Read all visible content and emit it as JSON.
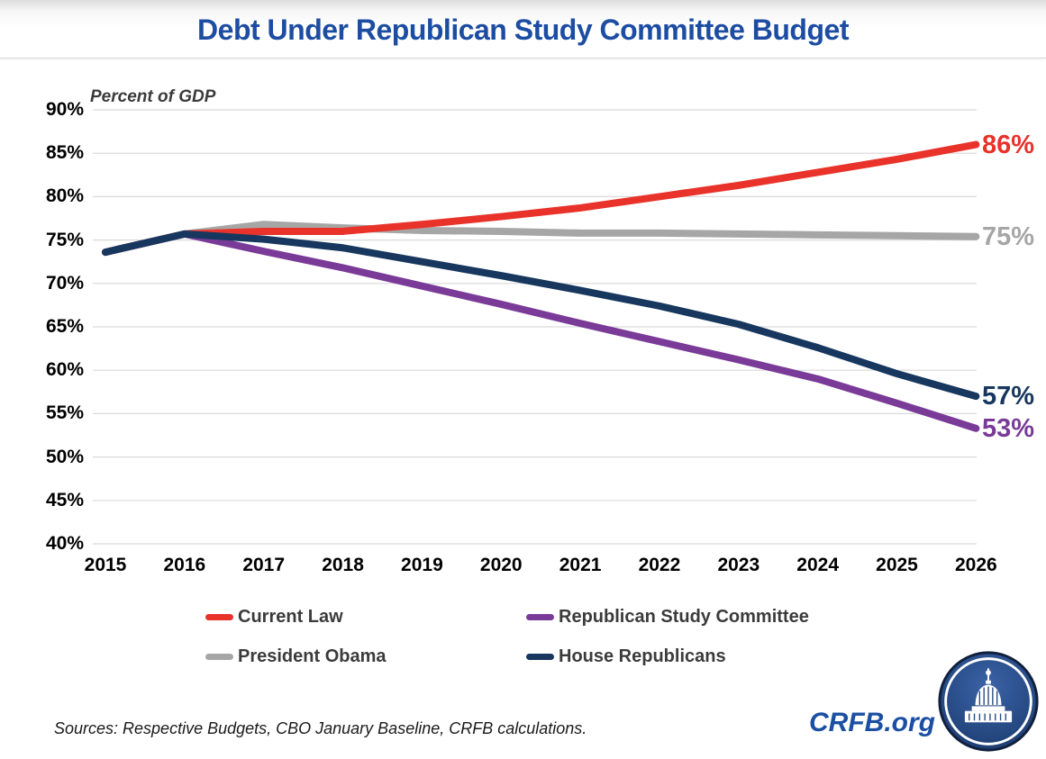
{
  "header": {
    "title": "Debt Under Republican Study Committee Budget"
  },
  "chart_data": {
    "type": "line",
    "title": "Debt Under Republican Study Committee Budget",
    "ylabel": "Percent of GDP",
    "xlabel": "",
    "x": [
      2015,
      2016,
      2017,
      2018,
      2019,
      2020,
      2021,
      2022,
      2023,
      2024,
      2025,
      2026
    ],
    "ylim": [
      40,
      90
    ],
    "ytick_step": 5,
    "ytick_suffix": "%",
    "grid": true,
    "legend_position": "bottom",
    "series": [
      {
        "name": "Current Law",
        "color": "#e8322a",
        "end_label": "86%",
        "values": [
          73.6,
          75.7,
          76.0,
          76.0,
          76.8,
          77.7,
          78.7,
          80.0,
          81.3,
          82.8,
          84.3,
          86.0
        ]
      },
      {
        "name": "President Obama",
        "color": "#a6a6a6",
        "end_label": "75%",
        "values": [
          73.6,
          75.7,
          76.8,
          76.4,
          76.1,
          76.0,
          75.8,
          75.8,
          75.7,
          75.6,
          75.5,
          75.4
        ]
      },
      {
        "name": "Republican Study Committee",
        "color": "#7a3b98",
        "end_label": "53%",
        "values": [
          73.6,
          75.7,
          73.7,
          71.8,
          69.7,
          67.6,
          65.4,
          63.3,
          61.2,
          59.0,
          56.2,
          53.3
        ]
      },
      {
        "name": "House Republicans",
        "color": "#17375e",
        "end_label": "57%",
        "values": [
          73.6,
          75.7,
          75.1,
          74.1,
          72.5,
          70.9,
          69.2,
          67.4,
          65.3,
          62.6,
          59.6,
          57.0
        ]
      }
    ]
  },
  "footer": {
    "sources": "Sources: Respective Budgets, CBO January Baseline, CRFB calculations.",
    "brand": "CRFB.org"
  }
}
